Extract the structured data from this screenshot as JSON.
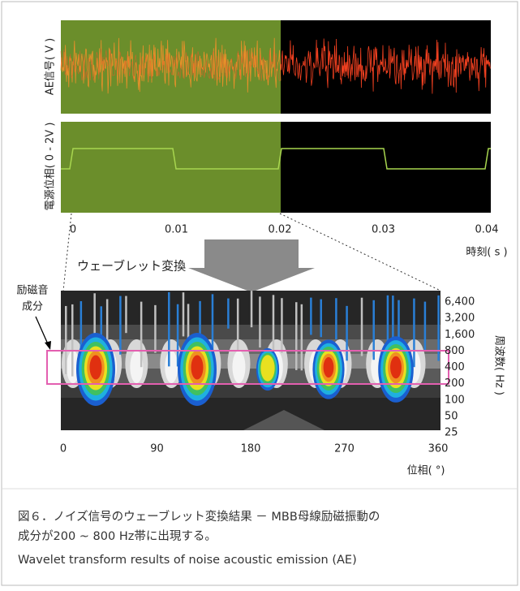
{
  "figure": {
    "ae_panel": {
      "ylabel": "AE信号( V )"
    },
    "phase_panel": {
      "ylabel": "電源位相( 0 - 2V )"
    },
    "time_axis": {
      "label": "時刻( s )",
      "xlim": [
        0,
        0.04
      ],
      "ticks": [
        0,
        0.01,
        0.02,
        0.03,
        0.04
      ]
    },
    "transform_label": "ウェーブレット変換",
    "annotation": [
      "励磁音",
      "成分"
    ],
    "frequency_axis": {
      "label": "周波数( Hz )",
      "log_scale": true,
      "ticks": [
        {
          "value": 6400,
          "label": "6,400"
        },
        {
          "value": 3200,
          "label": "3,200"
        },
        {
          "value": 1600,
          "label": "1,600"
        },
        800,
        400,
        200,
        100,
        50,
        25
      ]
    },
    "phase_axis": {
      "label": "位相( °)",
      "xlim": [
        0,
        360
      ],
      "ticks": [
        0,
        90,
        180,
        270,
        360
      ]
    },
    "caption": [
      "図６．ノイズ信号のウェーブレット変換結果 － MBB母線励磁振動の",
      "成分が200 ~ 800 Hz帯に出現する。",
      "Wavelet transform results of noise acoustic emission (AE)"
    ]
  }
}
